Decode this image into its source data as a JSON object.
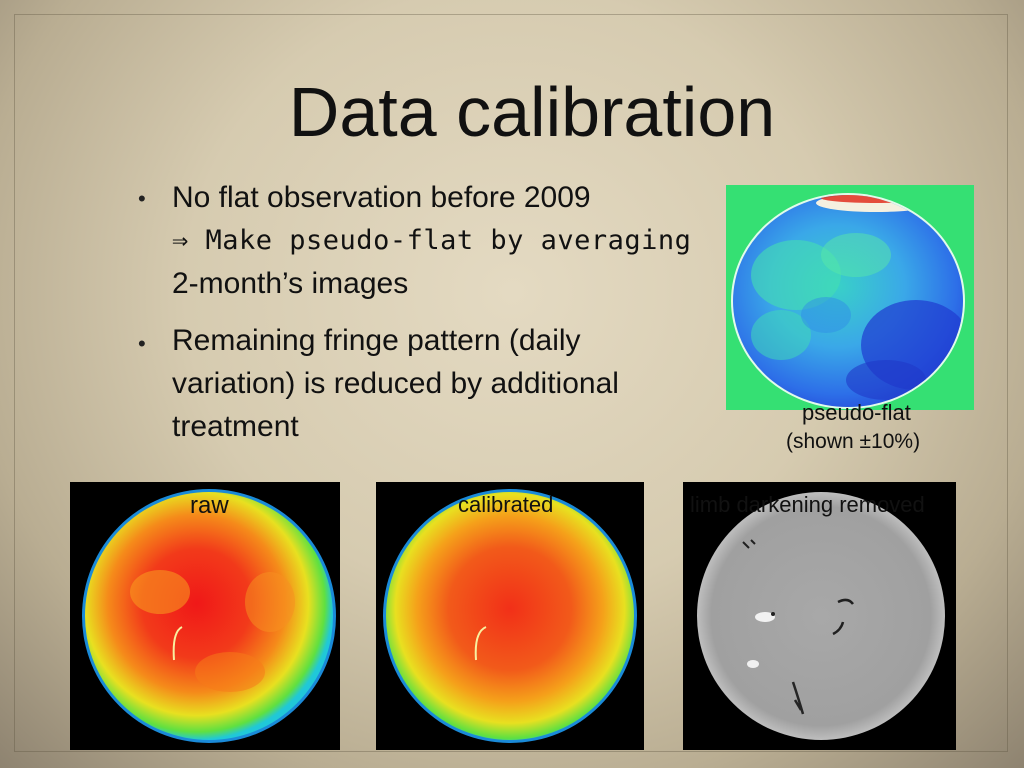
{
  "slide": {
    "title": "Data calibration",
    "bullets": [
      {
        "line1": "No flat observation before 2009",
        "line2": "⇒ Make pseudo-flat by averaging",
        "line3": "2-month’s images"
      },
      {
        "line1": "Remaining fringe pattern (daily",
        "line2": "variation) is reduced by additional",
        "line3": "treatment"
      }
    ],
    "bullet_symbol": "•"
  },
  "images": {
    "pseudo_flat": {
      "label": "pseudo-flat",
      "caption": "(shown ±10%)"
    },
    "raw": {
      "label": "raw"
    },
    "calibrated": {
      "label": "calibrated"
    },
    "limb": {
      "label": "limb darkening removed"
    }
  },
  "colors": {
    "background": "#d6cbb0",
    "text": "#111111",
    "flat_background": "#35e073"
  }
}
